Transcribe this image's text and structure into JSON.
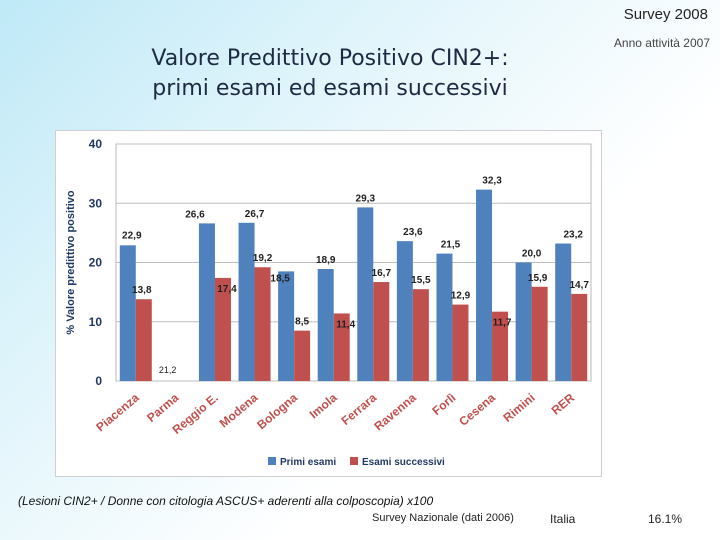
{
  "header": {
    "survey": "Survey 2008",
    "anno": "Anno attività 2007",
    "title_line1": "Valore Predittivo Positivo CIN2+:",
    "title_line2": "primi esami ed esami successivi"
  },
  "footer": {
    "note": "(Lesioni CIN2+ / Donne con citologia ASCUS+ aderenti alla colposcopia) x100",
    "source": "Survey Nazionale (dati 2006)",
    "italia_label": "Italia",
    "italia_value": "16.1%"
  },
  "colors": {
    "primi": "#4f81bd",
    "successivi": "#c0504d",
    "axis_label": "#1f3864",
    "data_label": "#1f1f1f"
  },
  "chart_data": {
    "type": "bar",
    "ylabel": "% Valore predittivo positivo",
    "ylim": [
      0,
      40
    ],
    "yticks": [
      "0",
      "10",
      "20",
      "30",
      "40"
    ],
    "categories": [
      "Piacenza",
      "Parma",
      "Reggio E.",
      "Modena",
      "Bologna",
      "Imola",
      "Ferrara",
      "Ravenna",
      "Forlì",
      "Cesena",
      "Rimini",
      "RER"
    ],
    "series": [
      {
        "name": "Primi esami",
        "values": [
          22.9,
          0,
          26.6,
          26.7,
          18.5,
          18.9,
          29.3,
          23.6,
          21.5,
          32.3,
          20.0,
          23.2
        ],
        "labels": [
          "22,9",
          "",
          "26,6",
          "26,7",
          "18,5",
          "18,9",
          "29,3",
          "23,6",
          "21,5",
          "32,3",
          "20,0",
          "23,2"
        ]
      },
      {
        "name": "Esami successivi",
        "values": [
          13.8,
          0,
          17.4,
          19.2,
          8.5,
          11.4,
          16.7,
          15.5,
          12.9,
          11.7,
          15.9,
          14.7
        ],
        "labels": [
          "13,8",
          "",
          "17,4",
          "19,2",
          "8,5",
          "11,4",
          "16,7",
          "15,5",
          "12,9",
          "11,7",
          "15,9",
          "14,7"
        ]
      }
    ],
    "annotations": [
      "21,2"
    ]
  }
}
